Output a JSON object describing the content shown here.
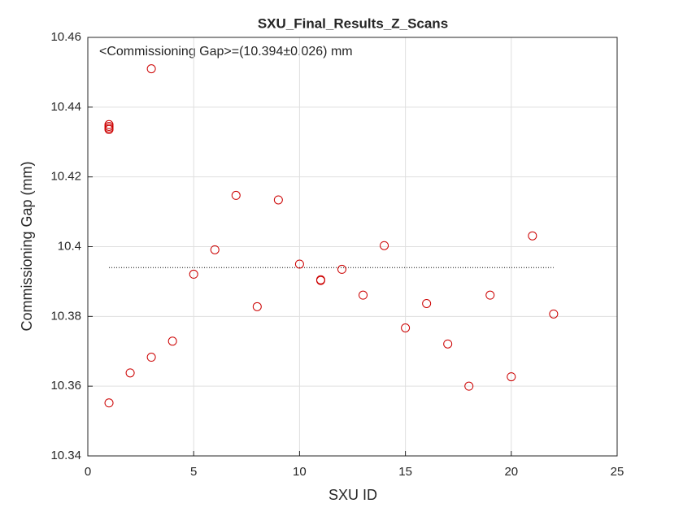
{
  "chart_data": {
    "type": "scatter",
    "title": "SXU_Final_Results_Z_Scans",
    "annotation": "<Commissioning Gap>=(10.394±0.026) mm",
    "x_label": "SXU ID",
    "y_label": "Commissioning Gap (mm)",
    "x": [
      1,
      1,
      1,
      1,
      1,
      2,
      3,
      3,
      4,
      5,
      6,
      7,
      8,
      9,
      10,
      11,
      11,
      12,
      13,
      14,
      15,
      16,
      17,
      18,
      19,
      20,
      21,
      22
    ],
    "values": [
      10.3552,
      10.4336,
      10.434,
      10.4345,
      10.435,
      10.3638,
      10.451,
      10.3683,
      10.3729,
      10.3921,
      10.3991,
      10.4147,
      10.3828,
      10.4134,
      10.395,
      10.3905,
      10.3903,
      10.3935,
      10.3861,
      10.4003,
      10.3767,
      10.3837,
      10.3721,
      10.36,
      10.3861,
      10.3627,
      10.4031,
      10.3807
    ],
    "color": "#cc0000",
    "mean_line": {
      "x": [
        1,
        22
      ],
      "value": 10.394,
      "color": "#000000"
    },
    "xlim": [
      0,
      25
    ],
    "xticks": [
      0,
      5,
      10,
      15,
      20,
      25
    ],
    "ylim": [
      10.34,
      10.46
    ],
    "yticks": [
      10.34,
      10.36,
      10.38,
      10.4,
      10.42,
      10.44,
      10.46
    ],
    "grid": true
  }
}
